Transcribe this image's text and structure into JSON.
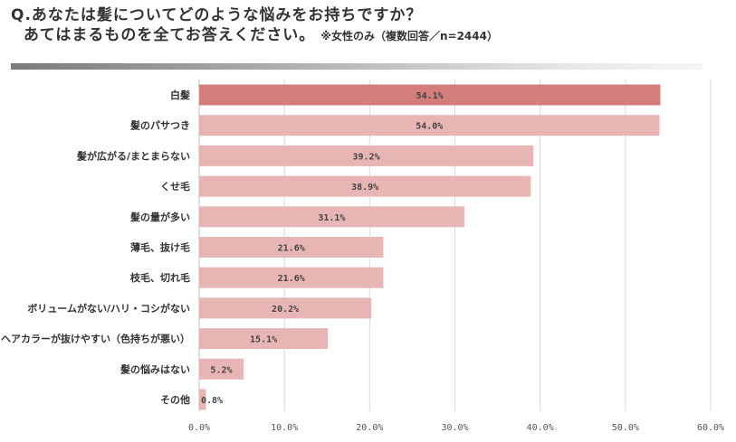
{
  "header": {
    "question_line1": "Q.あなたは髪についてどのような悩みをお持ちですか？",
    "question_line2": "あてはまるものを全てお答えください。",
    "note": "※女性のみ（複数回答／n=2444）"
  },
  "colors": {
    "highlight_bar": "#d47d7d",
    "bar": "#e8b5b5",
    "gridline": "#d9d9d9",
    "axis": "#bfbfbf"
  },
  "chart_data": {
    "type": "bar",
    "orientation": "horizontal",
    "title": "Q.あなたは髪についてどのような悩みをお持ちですか？ あてはまるものを全てお答えください。",
    "xlabel": "",
    "ylabel": "",
    "xlim": [
      0,
      60
    ],
    "xticks": [
      "0.0%",
      "10.0%",
      "20.0%",
      "30.0%",
      "40.0%",
      "50.0%",
      "60.0%"
    ],
    "xtick_values": [
      0,
      10,
      20,
      30,
      40,
      50,
      60
    ],
    "grid": true,
    "categories": [
      "白髪",
      "髪のパサつき",
      "髪が広がる/まとまらない",
      "くせ毛",
      "髪の量が多い",
      "薄毛、抜け毛",
      "枝毛、切れ毛",
      "ボリュームがない/ハリ・コシがない",
      "ヘアカラーが抜けやすい（色持ちが悪い）",
      "髪の悩みはない",
      "その他"
    ],
    "values": [
      54.1,
      54.0,
      39.2,
      38.9,
      31.1,
      21.6,
      21.6,
      20.2,
      15.1,
      5.2,
      0.8
    ],
    "value_labels": [
      "54.1%",
      "54.0%",
      "39.2%",
      "38.9%",
      "31.1%",
      "21.6%",
      "21.6%",
      "20.2%",
      "15.1%",
      "5.2%",
      "0.8%"
    ],
    "highlight_index": 0
  }
}
